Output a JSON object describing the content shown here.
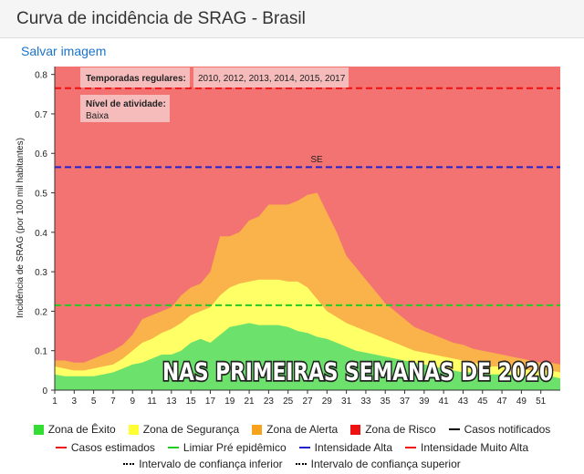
{
  "header": {
    "title": "Curva de incidência de SRAG - Brasil"
  },
  "actions": {
    "save_label": "Salvar imagem"
  },
  "chart_data": {
    "type": "area",
    "xlabel": "SE",
    "ylabel": "Incidência de SRAG (por 100 mil habitantes)",
    "xlim": [
      1,
      53
    ],
    "ylim": [
      0,
      0.82
    ],
    "x_ticks": [
      1,
      3,
      5,
      7,
      9,
      11,
      13,
      15,
      17,
      19,
      21,
      23,
      25,
      27,
      29,
      31,
      33,
      35,
      37,
      39,
      41,
      43,
      45,
      47,
      49,
      51
    ],
    "y_ticks": [
      0,
      0.1,
      0.2,
      0.3,
      0.4,
      0.5,
      0.6,
      0.7,
      0.8
    ],
    "grid": false,
    "legend_position": "bottom",
    "x": [
      1,
      2,
      3,
      4,
      5,
      6,
      7,
      8,
      9,
      10,
      11,
      12,
      13,
      14,
      15,
      16,
      17,
      18,
      19,
      20,
      21,
      22,
      23,
      24,
      25,
      26,
      27,
      28,
      29,
      30,
      31,
      32,
      33,
      34,
      35,
      36,
      37,
      38,
      39,
      40,
      41,
      42,
      43,
      44,
      45,
      46,
      47,
      48,
      49,
      50,
      51,
      52,
      53
    ],
    "series": [
      {
        "name": "Zona de Êxito",
        "color": "#6ce26c",
        "values": [
          0.04,
          0.035,
          0.035,
          0.035,
          0.035,
          0.04,
          0.045,
          0.055,
          0.065,
          0.07,
          0.08,
          0.09,
          0.09,
          0.1,
          0.12,
          0.13,
          0.12,
          0.14,
          0.16,
          0.165,
          0.17,
          0.165,
          0.165,
          0.165,
          0.16,
          0.15,
          0.145,
          0.135,
          0.13,
          0.12,
          0.11,
          0.1,
          0.095,
          0.09,
          0.085,
          0.08,
          0.075,
          0.07,
          0.065,
          0.06,
          0.055,
          0.05,
          0.045,
          0.045,
          0.04,
          0.04,
          0.04,
          0.04,
          0.035,
          0.035,
          0.035,
          0.035,
          0.03
        ]
      },
      {
        "name": "Zona de Segurança",
        "color": "#ffff66",
        "values": [
          0.06,
          0.055,
          0.05,
          0.05,
          0.055,
          0.06,
          0.065,
          0.08,
          0.1,
          0.12,
          0.13,
          0.145,
          0.155,
          0.17,
          0.19,
          0.2,
          0.21,
          0.24,
          0.26,
          0.27,
          0.275,
          0.28,
          0.28,
          0.28,
          0.275,
          0.275,
          0.26,
          0.23,
          0.2,
          0.185,
          0.17,
          0.16,
          0.15,
          0.14,
          0.13,
          0.12,
          0.11,
          0.1,
          0.095,
          0.09,
          0.085,
          0.08,
          0.075,
          0.07,
          0.065,
          0.06,
          0.06,
          0.055,
          0.055,
          0.05,
          0.05,
          0.05,
          0.045
        ]
      },
      {
        "name": "Zona de Alerta",
        "color": "#f9b34a",
        "values": [
          0.075,
          0.075,
          0.07,
          0.07,
          0.08,
          0.09,
          0.1,
          0.115,
          0.14,
          0.18,
          0.19,
          0.2,
          0.21,
          0.24,
          0.26,
          0.27,
          0.3,
          0.39,
          0.39,
          0.4,
          0.43,
          0.44,
          0.47,
          0.47,
          0.47,
          0.48,
          0.495,
          0.5,
          0.45,
          0.4,
          0.34,
          0.31,
          0.28,
          0.25,
          0.22,
          0.2,
          0.18,
          0.16,
          0.15,
          0.14,
          0.13,
          0.12,
          0.115,
          0.105,
          0.1,
          0.095,
          0.09,
          0.085,
          0.08,
          0.075,
          0.07,
          0.07,
          0.065
        ]
      },
      {
        "name": "Zona de Risco",
        "color": "#f37373",
        "values": "fill to top of axis"
      }
    ],
    "thresholds": [
      {
        "name": "Limiar Pré epidêmico",
        "value": 0.215,
        "color": "#22cc22"
      },
      {
        "name": "Intensidade Alta",
        "value": 0.565,
        "color": "#2222cc"
      },
      {
        "name": "Intensidade Muito Alta",
        "value": 0.765,
        "color": "#ee1111"
      }
    ],
    "info_box": {
      "seasons_label": "Temporadas regulares:",
      "seasons_value": "2010, 2012, 2013, 2014, 2015, 2017",
      "activity_label": "Nível de atividade:",
      "activity_value": "Baixa"
    },
    "overlay_caption": "NAS PRIMEIRAS SEMANAS DE 2020"
  },
  "legend": {
    "row1": [
      {
        "label": "Zona de Êxito",
        "kind": "box",
        "color": "#33dd33"
      },
      {
        "label": "Zona de Segurança",
        "kind": "box",
        "color": "#ffff33"
      },
      {
        "label": "Zona de Alerta",
        "kind": "box",
        "color": "#f7a21b"
      },
      {
        "label": "Zona de Risco",
        "kind": "box",
        "color": "#ee1111"
      },
      {
        "label": "Casos notificados",
        "kind": "line",
        "color": "#000000",
        "style": "solid"
      }
    ],
    "row2": [
      {
        "label": "Casos estimados",
        "kind": "line",
        "color": "#ee1111",
        "style": "dashed"
      },
      {
        "label": "Limiar Pré epidêmico",
        "kind": "line",
        "color": "#22cc22",
        "style": "dashed"
      },
      {
        "label": "Intensidade Alta",
        "kind": "line",
        "color": "#2222cc",
        "style": "dashed"
      },
      {
        "label": "Intensidade Muito Alta",
        "kind": "line",
        "color": "#ee1111",
        "style": "dashed"
      }
    ],
    "row3": [
      {
        "label": "Intervalo de confiança inferior",
        "kind": "line",
        "color": "#000000",
        "style": "dotted"
      },
      {
        "label": "Intervalo de confiança superior",
        "kind": "line",
        "color": "#000000",
        "style": "dotted"
      }
    ]
  }
}
